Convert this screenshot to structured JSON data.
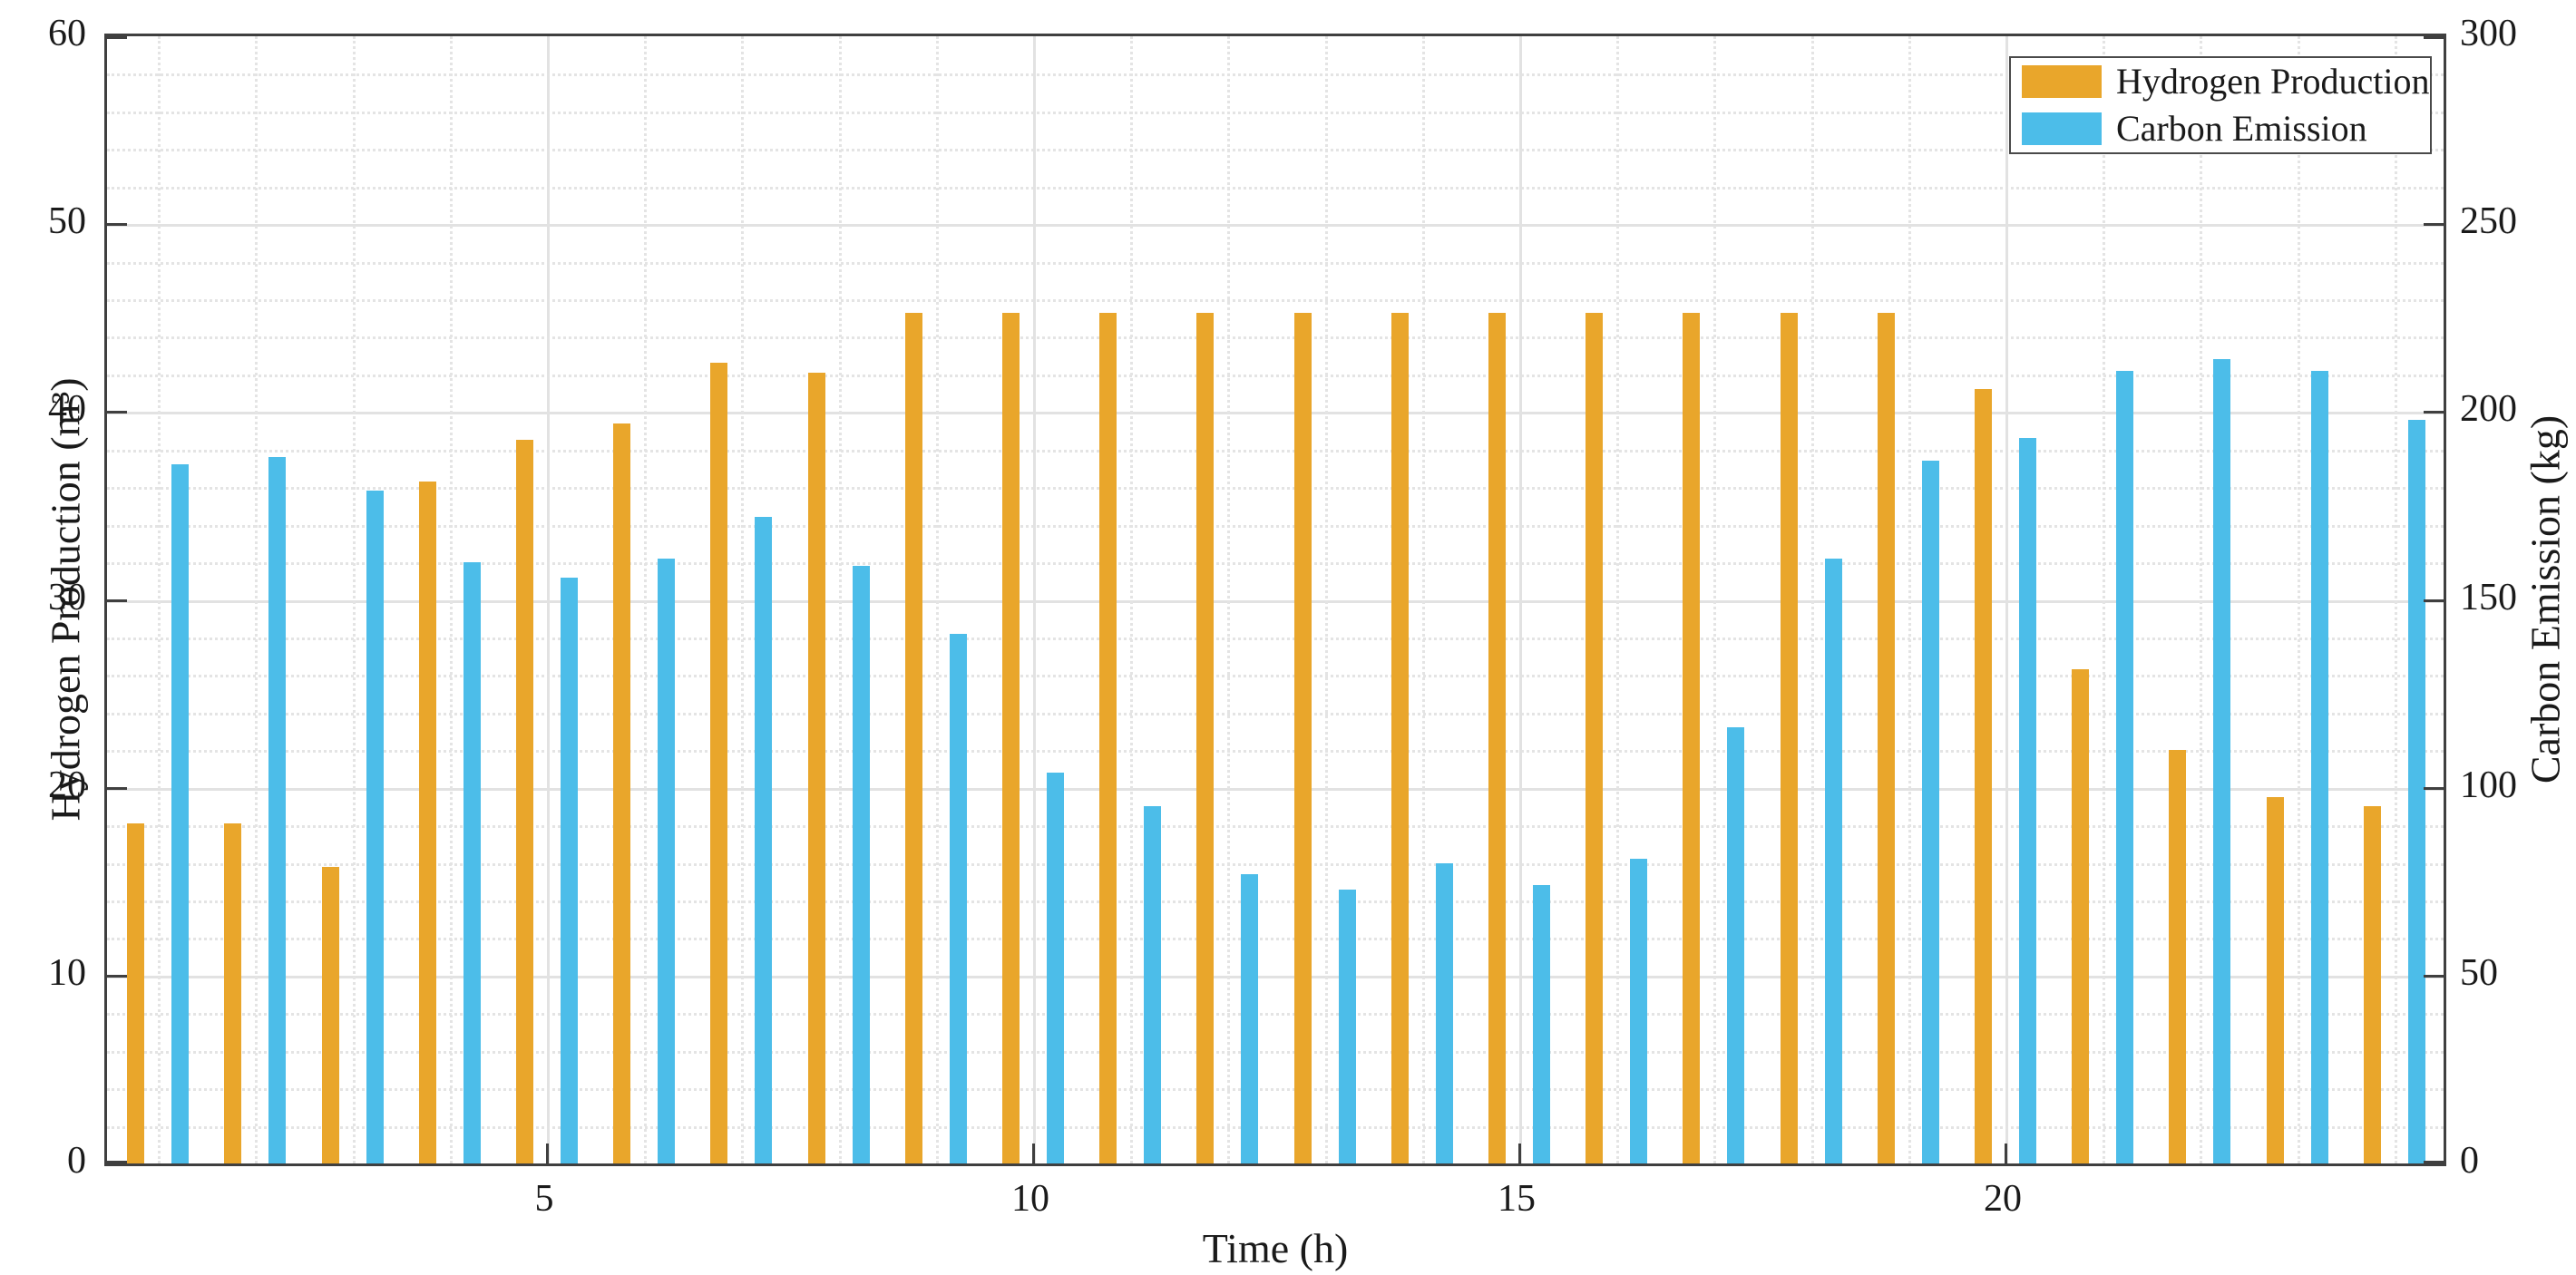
{
  "chart_data": {
    "type": "bar",
    "title": "",
    "xlabel": "Time (h)",
    "ylabel_left": "Hydrogen Production (m³)",
    "ylabel_right": "Carbon Emission (kg)",
    "hours": [
      1,
      2,
      3,
      4,
      5,
      6,
      7,
      8,
      9,
      10,
      11,
      12,
      13,
      14,
      15,
      16,
      17,
      18,
      19,
      20,
      21,
      22,
      23,
      24
    ],
    "series": [
      {
        "name": "Hydrogen Production",
        "axis": "left",
        "unit": "m³",
        "color": "#E9A62B",
        "values": [
          18.1,
          18.1,
          15.8,
          36.3,
          38.5,
          39.4,
          42.6,
          42.1,
          45.3,
          45.3,
          45.3,
          45.3,
          45.3,
          45.3,
          45.3,
          45.3,
          45.3,
          45.3,
          45.3,
          41.2,
          26.3,
          22.0,
          19.5,
          19.0
        ]
      },
      {
        "name": "Carbon Emission",
        "axis": "right",
        "unit": "kg",
        "color": "#4CBDE9",
        "values": [
          186,
          188,
          179,
          160,
          156,
          161,
          172,
          159,
          141,
          104,
          95,
          77,
          73,
          80,
          74,
          81,
          116,
          161,
          187,
          193,
          211,
          214,
          211,
          198
        ]
      }
    ],
    "ylim_left": [
      0,
      60
    ],
    "ylim_right": [
      0,
      300
    ],
    "yticks_left": [
      "0",
      "10",
      "20",
      "30",
      "40",
      "50",
      "60"
    ],
    "yticks_right": [
      "0",
      "50",
      "100",
      "150",
      "200",
      "250",
      "300"
    ],
    "xticks": [
      "5",
      "10",
      "15",
      "20"
    ],
    "grid": "major solid gray at y multiples of 10 and x 5/10/15/20; minor dotted every 2 units (y) and every hour (x)",
    "legend_position": "top-right"
  },
  "legend": {
    "items": [
      {
        "label": "Hydrogen Production",
        "color": "#E9A62B"
      },
      {
        "label": "Carbon Emission",
        "color": "#4CBDE9"
      }
    ]
  },
  "colors": {
    "hydrogen_bar": "#E9A62B",
    "carbon_bar": "#4CBDE9",
    "axis": "#3F3F3F",
    "grid_major": "#E2E2E2",
    "grid_minor": "#E4E4E4",
    "background": "#FFFFFF",
    "text": "#1A1A1A"
  }
}
